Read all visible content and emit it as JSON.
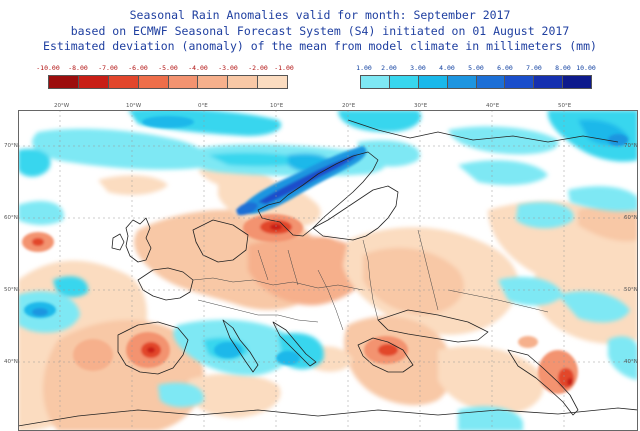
{
  "title_lines": [
    "Seasonal Rain Anomalies valid for month: September 2017",
    "based on ECMWF Seasonal Forecast System (S4) initiated on 01 August 2017",
    "Estimated deviation (anomaly) of the mean from model climate in millimeters (mm)"
  ],
  "legend": {
    "dry": {
      "labels": [
        "-10.00",
        "-8.00",
        "-7.00",
        "-6.00",
        "-5.00",
        "-4.00",
        "-3.00",
        "-2.00",
        "-1.00"
      ],
      "colors": [
        "#9c0d0d",
        "#c81e16",
        "#e2462c",
        "#ee6e4a",
        "#f39370",
        "#f6b08c",
        "#f8c8a6",
        "#fbdcc0"
      ]
    },
    "wet": {
      "labels": [
        "1.00",
        "2.00",
        "3.00",
        "4.00",
        "5.00",
        "6.00",
        "7.00",
        "8.00",
        "10.00"
      ],
      "colors": [
        "#7ee8f4",
        "#38d6ee",
        "#1ab8ea",
        "#1d95e0",
        "#1c6fd6",
        "#1a4ecb",
        "#1530b0",
        "#0d1a8c"
      ]
    }
  },
  "map": {
    "longitude_labels": [
      "20°W",
      "10°W",
      "0°E",
      "10°E",
      "20°E",
      "30°E",
      "40°E",
      "50°E"
    ],
    "latitude_labels": [
      "70°N",
      "60°N",
      "50°N",
      "40°N"
    ]
  }
}
